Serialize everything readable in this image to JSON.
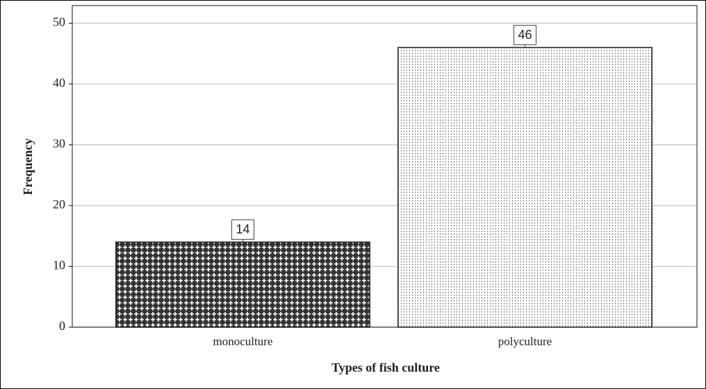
{
  "chart_data": {
    "type": "bar",
    "x_label": "Types of fish culture",
    "y_label": "Frequency",
    "categories": [
      "monoculture",
      "polyculture"
    ],
    "values": [
      14,
      46
    ],
    "ylim": [
      0,
      52.9
    ],
    "yticks": [
      0,
      10,
      20,
      30,
      40,
      50
    ],
    "grid": true
  }
}
